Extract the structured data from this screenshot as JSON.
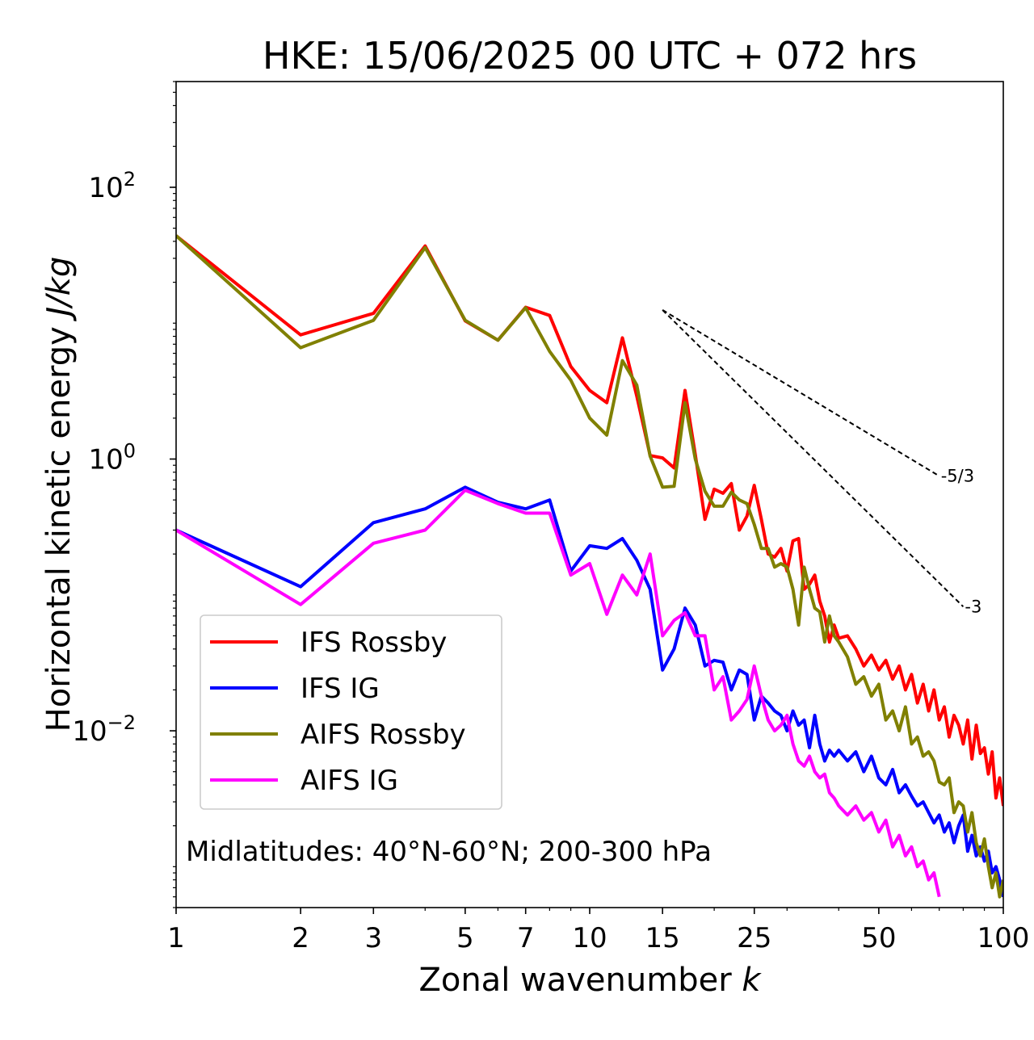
{
  "chart_data": {
    "type": "line",
    "title": "HKE: 15/06/2025 00 UTC + 072 hrs",
    "xlabel": "Zonal wavenumber",
    "xlabel_var": "k",
    "ylabel": "Horizontal kinetic energy",
    "ylabel_units": "J/kg",
    "xscale": "log",
    "yscale": "log",
    "xlim": [
      1,
      100
    ],
    "ylim": [
      0.0005,
      600
    ],
    "x_ticks": [
      1,
      2,
      3,
      5,
      7,
      10,
      15,
      25,
      50,
      100
    ],
    "x_tick_labels": [
      "1",
      "2",
      "3",
      "5",
      "7",
      "10",
      "15",
      "25",
      "50",
      "100"
    ],
    "y_ticks": [
      {
        "value": 100,
        "base": "10",
        "exp": "2"
      },
      {
        "value": 1,
        "base": "10",
        "exp": "0"
      },
      {
        "value": 0.01,
        "base": "10",
        "exp": "−2"
      }
    ],
    "grid": false,
    "legend_position": "lower-left",
    "annotation": "Midlatitudes: 40°N-60°N; 200-300 hPa",
    "reference_lines": [
      {
        "label": "-5/3",
        "slope": -1.6667,
        "x": [
          15,
          70
        ],
        "y": [
          12.5,
          0.75
        ]
      },
      {
        "label": "-3",
        "slope": -3,
        "x": [
          15,
          80
        ],
        "y": [
          12.5,
          0.082
        ]
      }
    ],
    "series": [
      {
        "name": "IFS Rossby",
        "color": "#ff0000",
        "x": [
          1,
          2,
          3,
          4,
          5,
          6,
          7,
          8,
          9,
          10,
          11,
          12,
          13,
          14,
          15,
          16,
          17,
          18,
          19,
          20,
          21,
          22,
          23,
          24,
          25,
          26,
          27,
          28,
          29,
          30,
          31,
          32,
          33,
          34,
          35,
          36,
          37,
          38,
          39,
          40,
          42,
          44,
          46,
          48,
          50,
          52,
          54,
          56,
          58,
          60,
          62,
          64,
          66,
          68,
          70,
          72,
          74,
          76,
          78,
          80,
          82,
          84,
          86,
          88,
          90,
          92,
          94,
          96,
          98,
          100
        ],
        "y": [
          44,
          8.2,
          11.8,
          37,
          10.4,
          7.5,
          13.1,
          11.4,
          4.8,
          3.2,
          2.6,
          7.8,
          2.9,
          1.06,
          1.02,
          0.86,
          3.2,
          1.08,
          0.36,
          0.6,
          0.56,
          0.66,
          0.3,
          0.38,
          0.64,
          0.36,
          0.2,
          0.19,
          0.22,
          0.15,
          0.25,
          0.26,
          0.11,
          0.12,
          0.14,
          0.09,
          0.07,
          0.045,
          0.06,
          0.048,
          0.05,
          0.04,
          0.03,
          0.036,
          0.028,
          0.033,
          0.024,
          0.03,
          0.02,
          0.026,
          0.016,
          0.022,
          0.014,
          0.02,
          0.012,
          0.015,
          0.009,
          0.013,
          0.011,
          0.008,
          0.012,
          0.0062,
          0.011,
          0.0068,
          0.0075,
          0.0048,
          0.007,
          0.0032,
          0.0045,
          0.0028
        ]
      },
      {
        "name": "IFS IG",
        "color": "#0000ff",
        "x": [
          1,
          2,
          3,
          4,
          5,
          6,
          7,
          8,
          9,
          10,
          11,
          12,
          13,
          14,
          15,
          16,
          17,
          18,
          19,
          20,
          21,
          22,
          23,
          24,
          25,
          26,
          27,
          28,
          29,
          30,
          31,
          32,
          33,
          34,
          35,
          36,
          37,
          38,
          39,
          40,
          42,
          44,
          46,
          48,
          50,
          52,
          54,
          56,
          58,
          60,
          62,
          64,
          66,
          68,
          70,
          72,
          74,
          76,
          78,
          80,
          82,
          84,
          86,
          88,
          90,
          92,
          94,
          96,
          98,
          100
        ],
        "y": [
          0.3,
          0.115,
          0.34,
          0.43,
          0.62,
          0.48,
          0.43,
          0.5,
          0.15,
          0.23,
          0.22,
          0.26,
          0.18,
          0.11,
          0.028,
          0.04,
          0.08,
          0.06,
          0.03,
          0.033,
          0.032,
          0.02,
          0.028,
          0.026,
          0.012,
          0.018,
          0.016,
          0.014,
          0.013,
          0.01,
          0.014,
          0.011,
          0.012,
          0.0075,
          0.013,
          0.008,
          0.006,
          0.0072,
          0.0065,
          0.0072,
          0.006,
          0.007,
          0.005,
          0.0065,
          0.0045,
          0.004,
          0.0052,
          0.0035,
          0.004,
          0.0033,
          0.0028,
          0.003,
          0.0025,
          0.0021,
          0.0024,
          0.0018,
          0.0021,
          0.0015,
          0.002,
          0.0024,
          0.0013,
          0.0017,
          0.0012,
          0.0014,
          0.0011,
          0.0013,
          0.0009,
          0.001,
          0.0008,
          0.0006
        ]
      },
      {
        "name": "AIFS Rossby",
        "color": "#808000",
        "x": [
          1,
          2,
          3,
          4,
          5,
          6,
          7,
          8,
          9,
          10,
          11,
          12,
          13,
          14,
          15,
          16,
          17,
          18,
          19,
          20,
          21,
          22,
          23,
          24,
          25,
          26,
          27,
          28,
          29,
          30,
          31,
          32,
          33,
          34,
          35,
          36,
          37,
          38,
          39,
          40,
          42,
          44,
          46,
          48,
          50,
          52,
          54,
          56,
          58,
          60,
          62,
          64,
          66,
          68,
          70,
          72,
          74,
          76,
          78,
          80,
          82,
          84,
          86,
          88,
          90,
          92,
          94,
          96,
          98,
          100
        ],
        "y": [
          44,
          6.6,
          10.5,
          36,
          10.5,
          7.5,
          13,
          6.2,
          3.8,
          2.0,
          1.5,
          5.3,
          3.5,
          1.05,
          0.62,
          0.63,
          2.6,
          1.0,
          0.58,
          0.45,
          0.45,
          0.57,
          0.5,
          0.47,
          0.33,
          0.22,
          0.22,
          0.16,
          0.17,
          0.16,
          0.11,
          0.06,
          0.16,
          0.11,
          0.08,
          0.075,
          0.045,
          0.07,
          0.05,
          0.045,
          0.035,
          0.022,
          0.025,
          0.018,
          0.022,
          0.012,
          0.014,
          0.01,
          0.015,
          0.008,
          0.009,
          0.0065,
          0.007,
          0.006,
          0.0042,
          0.004,
          0.0045,
          0.0025,
          0.003,
          0.0028,
          0.0018,
          0.0025,
          0.0015,
          0.0012,
          0.0016,
          0.001,
          0.0007,
          0.0009,
          0.0006,
          0.0008
        ]
      },
      {
        "name": "AIFS IG",
        "color": "#ff00ff",
        "x": [
          1,
          2,
          3,
          4,
          5,
          6,
          7,
          8,
          9,
          10,
          11,
          12,
          13,
          14,
          15,
          16,
          17,
          18,
          19,
          20,
          21,
          22,
          23,
          24,
          25,
          26,
          27,
          28,
          29,
          30,
          31,
          32,
          33,
          34,
          35,
          36,
          37,
          38,
          39,
          40,
          42,
          44,
          46,
          48,
          50,
          52,
          54,
          56,
          58,
          60,
          62,
          64,
          66,
          68,
          70
        ],
        "y": [
          0.3,
          0.085,
          0.24,
          0.3,
          0.59,
          0.47,
          0.4,
          0.4,
          0.14,
          0.17,
          0.072,
          0.14,
          0.1,
          0.2,
          0.05,
          0.065,
          0.074,
          0.05,
          0.05,
          0.02,
          0.025,
          0.012,
          0.014,
          0.017,
          0.03,
          0.018,
          0.012,
          0.01,
          0.011,
          0.013,
          0.008,
          0.006,
          0.0055,
          0.0065,
          0.005,
          0.0045,
          0.0048,
          0.0035,
          0.0032,
          0.0028,
          0.0024,
          0.0028,
          0.0022,
          0.0025,
          0.0018,
          0.0022,
          0.0014,
          0.0017,
          0.0012,
          0.0014,
          0.001,
          0.0011,
          0.0008,
          0.0009,
          0.0006
        ]
      }
    ]
  }
}
